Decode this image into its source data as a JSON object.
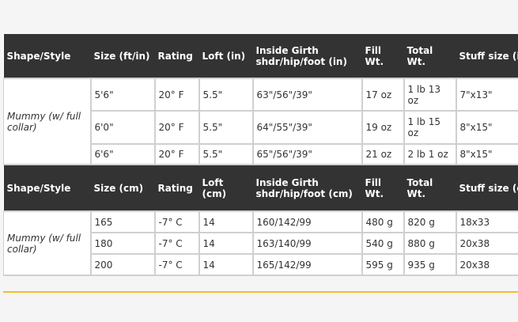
{
  "colors": {
    "header_bg": "#333333",
    "accent_rule": "#f0c020"
  },
  "imperial": {
    "headers": [
      "Shape/Style",
      "Size (ft/in)",
      "Rating",
      "Loft (in)",
      "Inside Girth shdr/hip/foot (in)",
      "Fill Wt.",
      "Total Wt.",
      "Stuff size (in)"
    ],
    "style": "Mummy (w/ full collar)",
    "rows": [
      [
        "5'6\"",
        "20° F",
        "5.5\"",
        "63\"/56\"/39\"",
        "17 oz",
        "1 lb 13 oz",
        "7\"x13\""
      ],
      [
        "6'0\"",
        "20° F",
        "5.5\"",
        "64\"/55\"/39\"",
        "19 oz",
        "1 lb 15 oz",
        "8\"x15\""
      ],
      [
        "6'6\"",
        "20° F",
        "5.5\"",
        "65\"/56\"/39\"",
        "21 oz",
        "2 lb 1 oz",
        "8\"x15\""
      ]
    ]
  },
  "metric": {
    "headers": [
      "Shape/Style",
      "Size (cm)",
      "Rating",
      "Loft (cm)",
      "Inside Girth shdr/hip/foot (cm)",
      "Fill Wt.",
      "Total Wt.",
      "Stuff size (cm)"
    ],
    "style": "Mummy (w/ full collar)",
    "rows": [
      [
        "165",
        "-7° C",
        "14",
        "160/142/99",
        "480 g",
        "820 g",
        "18x33"
      ],
      [
        "180",
        "-7° C",
        "14",
        "163/140/99",
        "540 g",
        "880 g",
        "20x38"
      ],
      [
        "200",
        "-7° C",
        "14",
        "165/142/99",
        "595 g",
        "935 g",
        "20x38"
      ]
    ]
  }
}
